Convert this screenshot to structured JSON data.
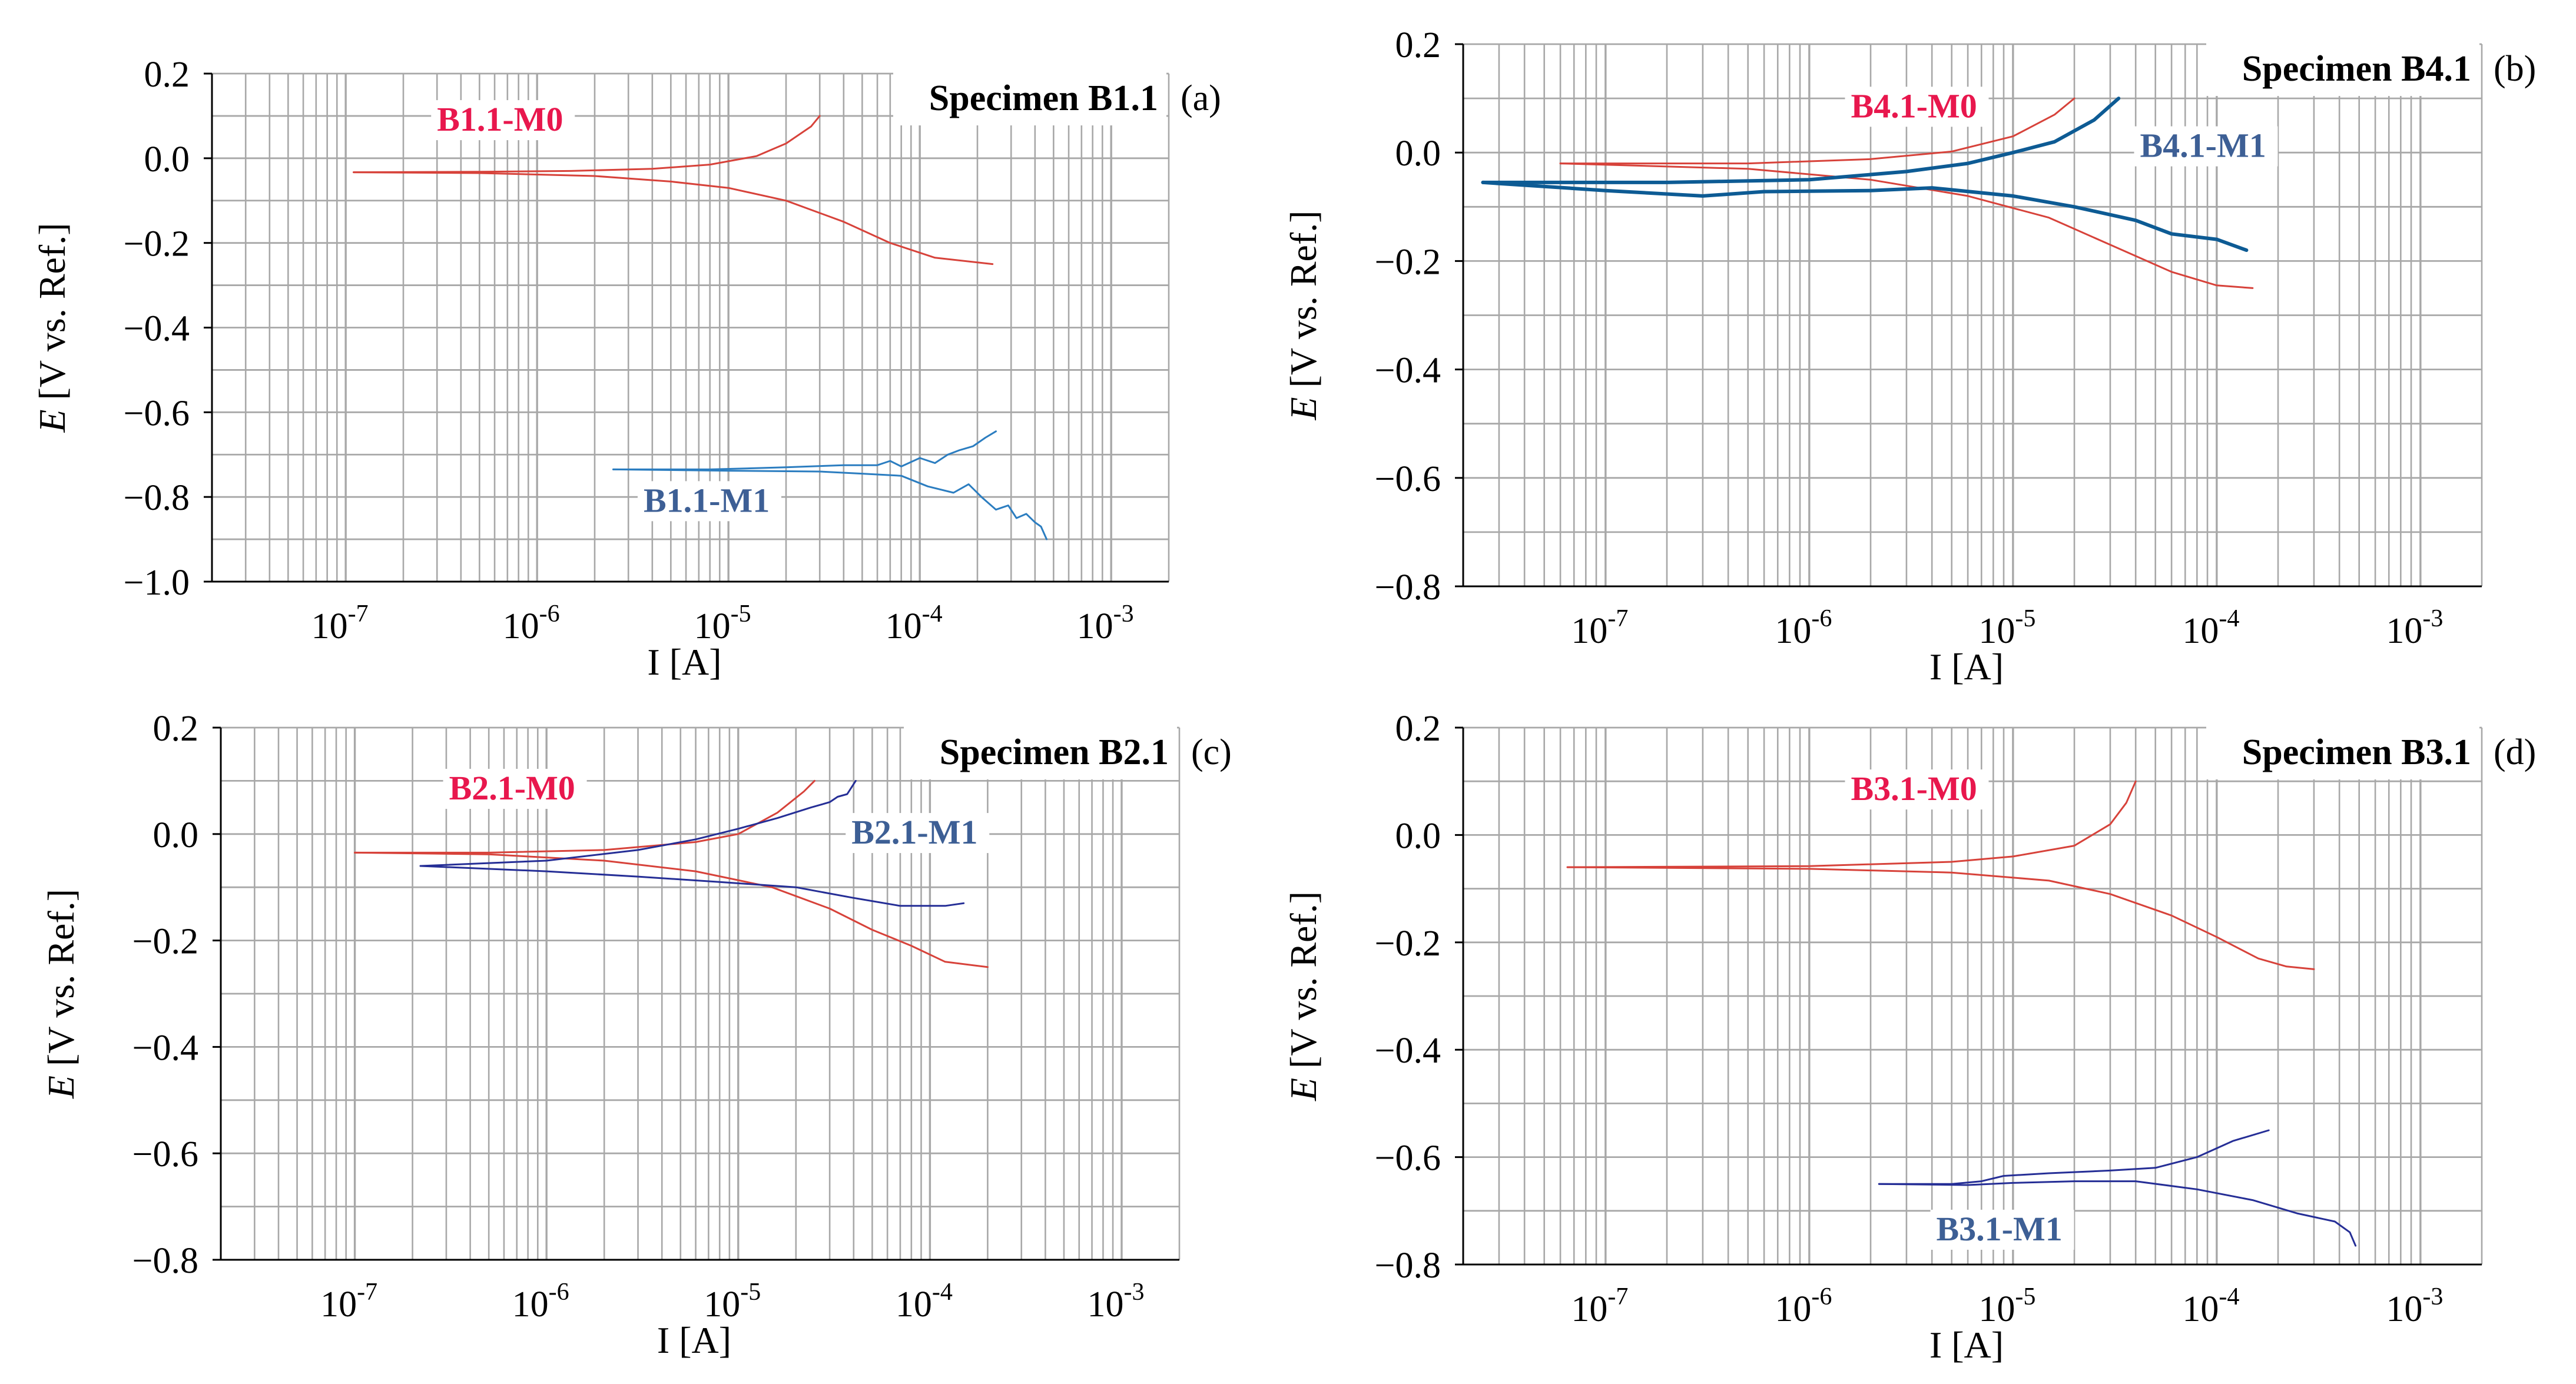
{
  "figure": {
    "x_axis_label": "I [A]",
    "y_axis_label_italic": "E",
    "y_axis_label_rest": " [V vs. Ref.]"
  },
  "colors": {
    "m0": "#d7423a",
    "m0_label": "#e8174d",
    "m1_light": "#2b7dc0",
    "m1_dark": "#0d5b94",
    "m1_navy": "#252e96",
    "m1_label": "#3d5f95",
    "grid": "#a8a8a8"
  },
  "chart_data": [
    {
      "id": "a",
      "type": "line",
      "title": "Specimen B1.1",
      "panel_label": "(a)",
      "xscale": "log",
      "xlabel": "I [A]",
      "ylabel": "E [V vs. Ref.]",
      "xlim": [
        2e-08,
        0.002
      ],
      "ylim": [
        -1.0,
        0.2
      ],
      "yticks": [
        0.2,
        0.0,
        -0.2,
        -0.4,
        -0.6,
        -0.8,
        -1.0
      ],
      "ytick_labels": [
        "0.2",
        "0.0",
        "−0.2",
        "−0.4",
        "−0.6",
        "−0.8",
        "−1.0"
      ],
      "xticks": [
        1e-07,
        1e-06,
        1e-05,
        0.0001,
        0.001
      ],
      "xtick_exponents": [
        "-7",
        "-6",
        "-5",
        "-4",
        "-3"
      ],
      "grid": true,
      "series": [
        {
          "name": "B1.1-M0",
          "color": "#d7423a",
          "width": 3,
          "branches": [
            [
              [
                1.1e-07,
                -0.033
              ],
              [
                5e-07,
                -0.032
              ],
              [
                1.5e-06,
                -0.03
              ],
              [
                4e-06,
                -0.025
              ],
              [
                8e-06,
                -0.015
              ],
              [
                1.4e-05,
                0.005
              ],
              [
                2e-05,
                0.035
              ],
              [
                2.7e-05,
                0.075
              ],
              [
                3e-05,
                0.1
              ]
            ],
            [
              [
                1.1e-07,
                -0.033
              ],
              [
                5e-07,
                -0.035
              ],
              [
                2e-06,
                -0.042
              ],
              [
                5e-06,
                -0.055
              ],
              [
                1e-05,
                -0.07
              ],
              [
                2e-05,
                -0.1
              ],
              [
                4e-05,
                -0.15
              ],
              [
                7e-05,
                -0.2
              ],
              [
                0.00012,
                -0.235
              ],
              [
                0.00024,
                -0.25
              ]
            ]
          ],
          "label": {
            "text": "B1.1-M0",
            "x": 3e-07,
            "y": 0.065,
            "color": "#e8174d"
          }
        },
        {
          "name": "B1.1-M1",
          "color": "#2b7dc0",
          "width": 3,
          "branches": [
            [
              [
                2.5e-06,
                -0.735
              ],
              [
                8e-06,
                -0.735
              ],
              [
                2e-05,
                -0.73
              ],
              [
                4e-05,
                -0.725
              ],
              [
                6e-05,
                -0.725
              ],
              [
                7e-05,
                -0.715
              ],
              [
                8e-05,
                -0.728
              ],
              [
                0.0001,
                -0.708
              ],
              [
                0.00012,
                -0.72
              ],
              [
                0.00014,
                -0.7
              ],
              [
                0.00016,
                -0.69
              ],
              [
                0.00019,
                -0.68
              ],
              [
                0.00022,
                -0.66
              ],
              [
                0.00025,
                -0.645
              ]
            ],
            [
              [
                2.5e-06,
                -0.735
              ],
              [
                1e-05,
                -0.738
              ],
              [
                3e-05,
                -0.74
              ],
              [
                5e-05,
                -0.745
              ],
              [
                8e-05,
                -0.75
              ],
              [
                0.00011,
                -0.775
              ],
              [
                0.00015,
                -0.79
              ],
              [
                0.00018,
                -0.77
              ],
              [
                0.00021,
                -0.8
              ],
              [
                0.00025,
                -0.83
              ],
              [
                0.00029,
                -0.82
              ],
              [
                0.00032,
                -0.85
              ],
              [
                0.00036,
                -0.84
              ],
              [
                0.0004,
                -0.86
              ],
              [
                0.00043,
                -0.87
              ],
              [
                0.00046,
                -0.9
              ]
            ]
          ],
          "label": {
            "text": "B1.1-M1",
            "x": 3.6e-06,
            "y": -0.835,
            "color": "#3d5f95"
          }
        }
      ]
    },
    {
      "id": "b",
      "type": "line",
      "title": "Specimen B4.1",
      "panel_label": "(b)",
      "xscale": "log",
      "xlabel": "I [A]",
      "ylabel": "E [V vs. Ref.]",
      "xlim": [
        2e-08,
        0.002
      ],
      "ylim": [
        -0.8,
        0.2
      ],
      "yticks": [
        0.2,
        0.0,
        -0.2,
        -0.4,
        -0.6,
        -0.8
      ],
      "ytick_labels": [
        "0.2",
        "0.0",
        "−0.2",
        "−0.4",
        "−0.6",
        "−0.8"
      ],
      "xticks": [
        1e-07,
        1e-06,
        1e-05,
        0.0001,
        0.001
      ],
      "xtick_exponents": [
        "-7",
        "-6",
        "-5",
        "-4",
        "-3"
      ],
      "grid": true,
      "series": [
        {
          "name": "B4.1-M0",
          "color": "#d7423a",
          "width": 3,
          "branches": [
            [
              [
                6e-08,
                -0.02
              ],
              [
                5e-07,
                -0.02
              ],
              [
                2e-06,
                -0.012
              ],
              [
                5e-06,
                0.002
              ],
              [
                1e-05,
                0.03
              ],
              [
                1.6e-05,
                0.07
              ],
              [
                2e-05,
                0.1
              ]
            ],
            [
              [
                6e-08,
                -0.02
              ],
              [
                5e-07,
                -0.03
              ],
              [
                2e-06,
                -0.05
              ],
              [
                6e-06,
                -0.08
              ],
              [
                1.5e-05,
                -0.12
              ],
              [
                3e-05,
                -0.17
              ],
              [
                6e-05,
                -0.22
              ],
              [
                0.0001,
                -0.245
              ],
              [
                0.00015,
                -0.25
              ]
            ]
          ],
          "label": {
            "text": "B4.1-M0",
            "x": 1.6e-06,
            "y": 0.065,
            "color": "#e8174d"
          }
        },
        {
          "name": "B4.1-M1",
          "color": "#0d5b94",
          "width": 6,
          "branches": [
            [
              [
                2.5e-08,
                -0.055
              ],
              [
                2e-07,
                -0.055
              ],
              [
                1e-06,
                -0.05
              ],
              [
                3e-06,
                -0.035
              ],
              [
                6e-06,
                -0.02
              ],
              [
                1e-05,
                0.0
              ],
              [
                1.6e-05,
                0.02
              ],
              [
                2.5e-05,
                0.06
              ],
              [
                3.3e-05,
                0.1
              ]
            ],
            [
              [
                2.5e-08,
                -0.055
              ],
              [
                1e-07,
                -0.07
              ],
              [
                3e-07,
                -0.08
              ],
              [
                6e-07,
                -0.072
              ],
              [
                2e-06,
                -0.07
              ],
              [
                4e-06,
                -0.065
              ],
              [
                1e-05,
                -0.08
              ],
              [
                2e-05,
                -0.1
              ],
              [
                4e-05,
                -0.125
              ],
              [
                6e-05,
                -0.15
              ],
              [
                0.0001,
                -0.16
              ],
              [
                0.00014,
                -0.18
              ]
            ]
          ],
          "label": {
            "text": "B4.1-M1",
            "x": 4.2e-05,
            "y": -0.008,
            "color": "#3d5f95"
          }
        }
      ]
    },
    {
      "id": "c",
      "type": "line",
      "title": "Specimen B2.1",
      "panel_label": "(c)",
      "xscale": "log",
      "xlabel": "I [A]",
      "ylabel": "E [V vs. Ref.]",
      "xlim": [
        2e-08,
        0.002
      ],
      "ylim": [
        -0.8,
        0.2
      ],
      "yticks": [
        0.2,
        0.0,
        -0.2,
        -0.4,
        -0.6,
        -0.8
      ],
      "ytick_labels": [
        "0.2",
        "0.0",
        "−0.2",
        "−0.4",
        "−0.6",
        "−0.8"
      ],
      "xticks": [
        1e-07,
        1e-06,
        1e-05,
        0.0001,
        0.001
      ],
      "xtick_exponents": [
        "-7",
        "-6",
        "-5",
        "-4",
        "-3"
      ],
      "grid": true,
      "series": [
        {
          "name": "B2.1-M0",
          "color": "#d7423a",
          "width": 3,
          "branches": [
            [
              [
                1e-07,
                -0.035
              ],
              [
                5e-07,
                -0.035
              ],
              [
                2e-06,
                -0.03
              ],
              [
                6e-06,
                -0.015
              ],
              [
                1e-05,
                0.0
              ],
              [
                1.6e-05,
                0.04
              ],
              [
                2.2e-05,
                0.08
              ],
              [
                2.5e-05,
                0.1
              ]
            ],
            [
              [
                1e-07,
                -0.035
              ],
              [
                5e-07,
                -0.038
              ],
              [
                2e-06,
                -0.05
              ],
              [
                6e-06,
                -0.07
              ],
              [
                1.5e-05,
                -0.1
              ],
              [
                3e-05,
                -0.14
              ],
              [
                5e-05,
                -0.18
              ],
              [
                8e-05,
                -0.21
              ],
              [
                0.00012,
                -0.24
              ],
              [
                0.0002,
                -0.25
              ]
            ]
          ],
          "label": {
            "text": "B2.1-M0",
            "x": 3.1e-07,
            "y": 0.065,
            "color": "#e8174d"
          }
        },
        {
          "name": "B2.1-M1",
          "color": "#252e96",
          "width": 3,
          "branches": [
            [
              [
                2.2e-07,
                -0.06
              ],
              [
                1e-06,
                -0.05
              ],
              [
                3e-06,
                -0.03
              ],
              [
                6e-06,
                -0.01
              ],
              [
                1e-05,
                0.01
              ],
              [
                1.6e-05,
                0.03
              ],
              [
                2.4e-05,
                0.05
              ],
              [
                3e-05,
                0.06
              ],
              [
                3.3e-05,
                0.07
              ],
              [
                3.7e-05,
                0.075
              ],
              [
                4.1e-05,
                0.1
              ]
            ],
            [
              [
                2.2e-07,
                -0.06
              ],
              [
                1e-06,
                -0.07
              ],
              [
                3e-06,
                -0.08
              ],
              [
                8e-06,
                -0.09
              ],
              [
                2e-05,
                -0.1
              ],
              [
                4e-05,
                -0.12
              ],
              [
                7e-05,
                -0.135
              ],
              [
                0.00012,
                -0.135
              ],
              [
                0.00015,
                -0.13
              ]
            ]
          ],
          "label": {
            "text": "B2.1-M1",
            "x": 3.9e-05,
            "y": -0.018,
            "color": "#3d5f95"
          }
        }
      ]
    },
    {
      "id": "d",
      "type": "line",
      "title": "Specimen B3.1",
      "panel_label": "(d)",
      "xscale": "log",
      "xlabel": "I [A]",
      "ylabel": "E [V vs. Ref.]",
      "xlim": [
        2e-08,
        0.002
      ],
      "ylim": [
        -0.8,
        0.2
      ],
      "yticks": [
        0.2,
        0.0,
        -0.2,
        -0.4,
        -0.6,
        -0.8
      ],
      "ytick_labels": [
        "0.2",
        "0.0",
        "−0.2",
        "−0.4",
        "−0.6",
        "−0.8"
      ],
      "xticks": [
        1e-07,
        1e-06,
        1e-05,
        0.0001,
        0.001
      ],
      "xtick_exponents": [
        "-7",
        "-6",
        "-5",
        "-4",
        "-3"
      ],
      "grid": true,
      "series": [
        {
          "name": "B3.1-M0",
          "color": "#d7423a",
          "width": 3,
          "branches": [
            [
              [
                6.5e-08,
                -0.06
              ],
              [
                1e-06,
                -0.058
              ],
              [
                5e-06,
                -0.05
              ],
              [
                1e-05,
                -0.04
              ],
              [
                2e-05,
                -0.02
              ],
              [
                3e-05,
                0.02
              ],
              [
                3.6e-05,
                0.06
              ],
              [
                4e-05,
                0.1
              ]
            ],
            [
              [
                6.5e-08,
                -0.06
              ],
              [
                1e-06,
                -0.063
              ],
              [
                5e-06,
                -0.07
              ],
              [
                1.5e-05,
                -0.085
              ],
              [
                3e-05,
                -0.11
              ],
              [
                6e-05,
                -0.15
              ],
              [
                0.0001,
                -0.19
              ],
              [
                0.00016,
                -0.23
              ],
              [
                0.00022,
                -0.245
              ],
              [
                0.0003,
                -0.25
              ]
            ]
          ],
          "label": {
            "text": "B3.1-M0",
            "x": 1.6e-06,
            "y": 0.065,
            "color": "#e8174d"
          }
        },
        {
          "name": "B3.1-M1",
          "color": "#252e96",
          "width": 3,
          "branches": [
            [
              [
                2.2e-06,
                -0.65
              ],
              [
                5e-06,
                -0.65
              ],
              [
                7e-06,
                -0.645
              ],
              [
                9e-06,
                -0.635
              ],
              [
                1.5e-05,
                -0.63
              ],
              [
                3e-05,
                -0.625
              ],
              [
                5e-05,
                -0.62
              ],
              [
                8e-05,
                -0.6
              ],
              [
                0.00012,
                -0.57
              ],
              [
                0.00018,
                -0.55
              ]
            ],
            [
              [
                2.2e-06,
                -0.65
              ],
              [
                6e-06,
                -0.652
              ],
              [
                1e-05,
                -0.648
              ],
              [
                2e-05,
                -0.645
              ],
              [
                4e-05,
                -0.645
              ],
              [
                8e-05,
                -0.66
              ],
              [
                0.00015,
                -0.68
              ],
              [
                0.00025,
                -0.705
              ],
              [
                0.00038,
                -0.72
              ],
              [
                0.00045,
                -0.74
              ],
              [
                0.00048,
                -0.765
              ]
            ]
          ],
          "label": {
            "text": "B3.1-M1",
            "x": 4.2e-06,
            "y": -0.755,
            "color": "#3d5f95"
          }
        }
      ]
    }
  ]
}
